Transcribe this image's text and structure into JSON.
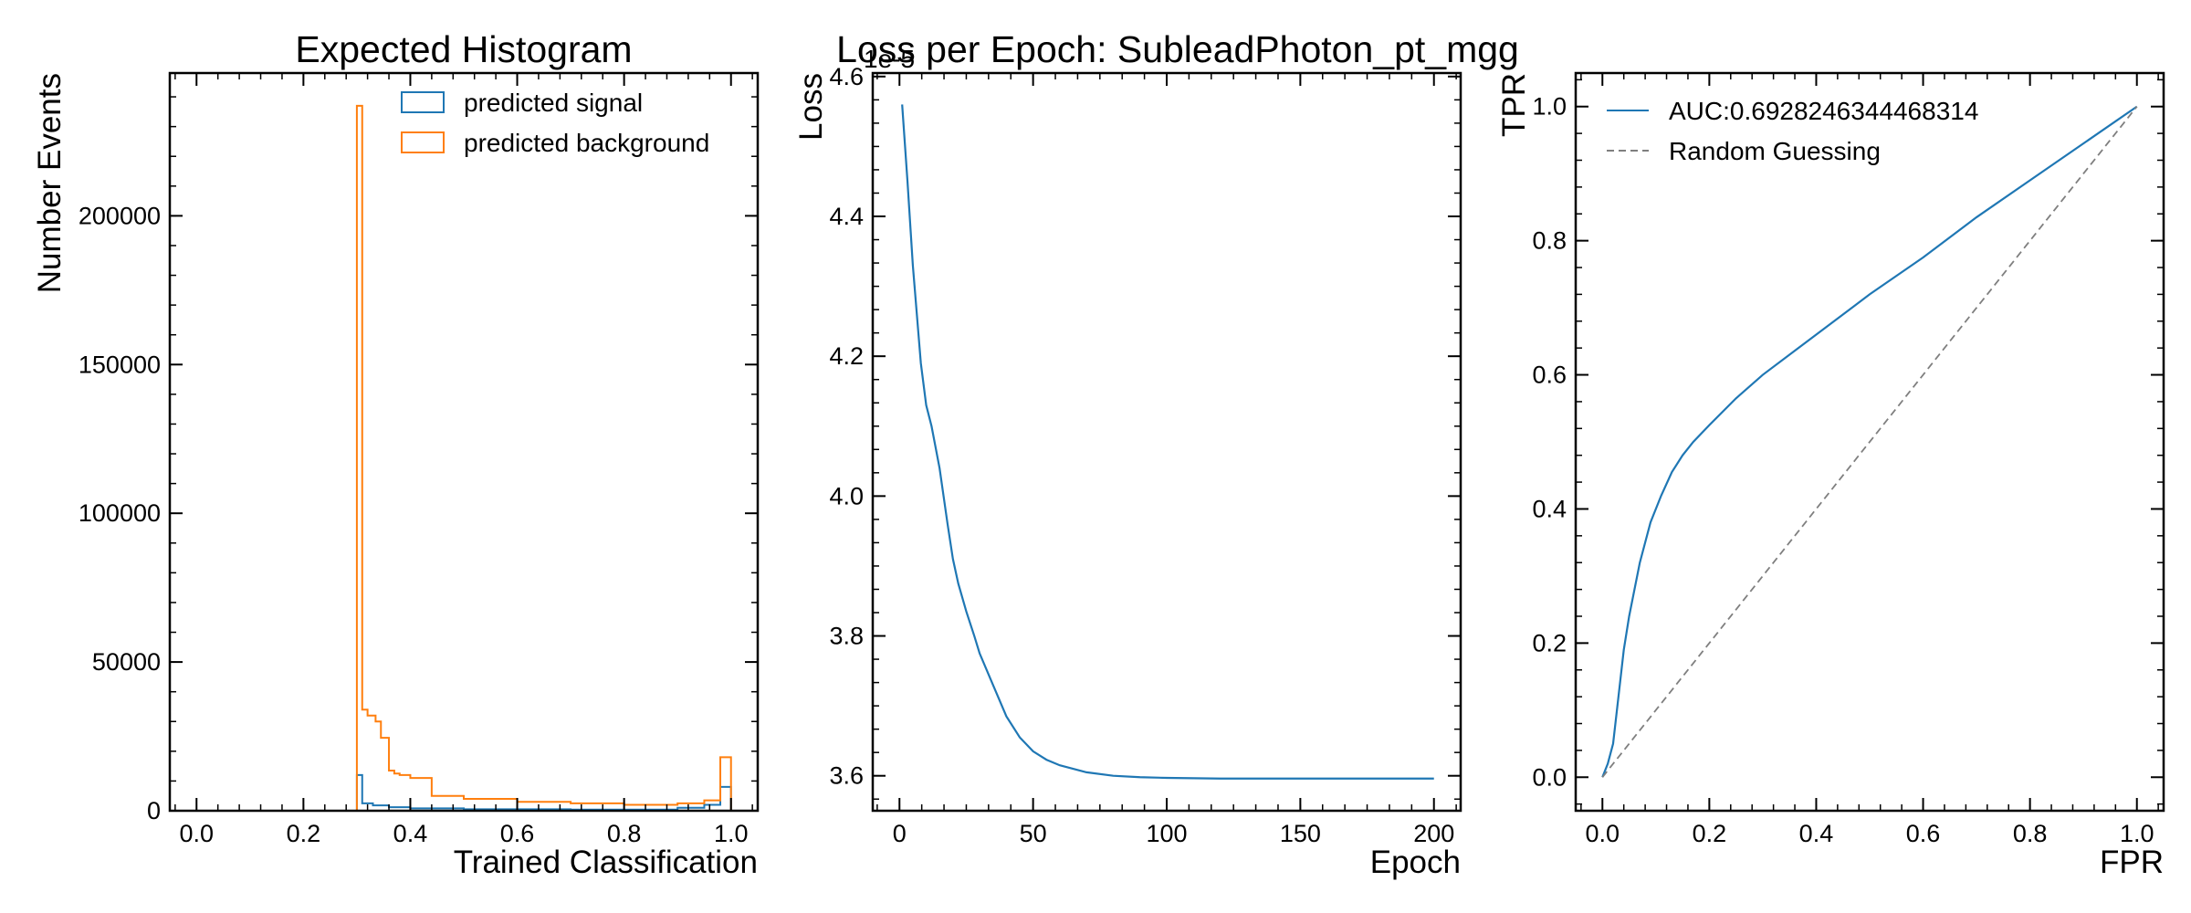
{
  "chart_data": [
    {
      "type": "histogram",
      "title": "Expected Histogram",
      "xlabel": "Trained Classification",
      "ylabel": "Number Events",
      "xlim": [
        -0.05,
        1.05
      ],
      "ylim": [
        0,
        248000
      ],
      "xticks": [
        "0.0",
        "0.2",
        "0.4",
        "0.6",
        "0.8",
        "1.0"
      ],
      "yticks": [
        "0",
        "50000",
        "100000",
        "150000",
        "200000"
      ],
      "legend_position": "top-right",
      "series": [
        {
          "name": "predicted signal",
          "color": "#1f77b4",
          "bins": [
            {
              "x0": 0.3,
              "x1": 0.31,
              "value": 12000
            },
            {
              "x0": 0.31,
              "x1": 0.33,
              "value": 2500
            },
            {
              "x0": 0.33,
              "x1": 0.36,
              "value": 1800
            },
            {
              "x0": 0.36,
              "x1": 0.4,
              "value": 1200
            },
            {
              "x0": 0.4,
              "x1": 0.5,
              "value": 800
            },
            {
              "x0": 0.5,
              "x1": 0.7,
              "value": 500
            },
            {
              "x0": 0.7,
              "x1": 0.9,
              "value": 400
            },
            {
              "x0": 0.9,
              "x1": 0.95,
              "value": 1000
            },
            {
              "x0": 0.95,
              "x1": 0.98,
              "value": 2000
            },
            {
              "x0": 0.98,
              "x1": 1.0,
              "value": 8000
            }
          ]
        },
        {
          "name": "predicted background",
          "color": "#ff7f0e",
          "bins": [
            {
              "x0": 0.3,
              "x1": 0.31,
              "value": 237000
            },
            {
              "x0": 0.31,
              "x1": 0.32,
              "value": 34000
            },
            {
              "x0": 0.32,
              "x1": 0.335,
              "value": 32000
            },
            {
              "x0": 0.335,
              "x1": 0.345,
              "value": 30000
            },
            {
              "x0": 0.345,
              "x1": 0.36,
              "value": 24500
            },
            {
              "x0": 0.36,
              "x1": 0.37,
              "value": 13500
            },
            {
              "x0": 0.37,
              "x1": 0.38,
              "value": 12500
            },
            {
              "x0": 0.38,
              "x1": 0.4,
              "value": 12000
            },
            {
              "x0": 0.4,
              "x1": 0.44,
              "value": 11000
            },
            {
              "x0": 0.44,
              "x1": 0.5,
              "value": 5000
            },
            {
              "x0": 0.5,
              "x1": 0.6,
              "value": 4000
            },
            {
              "x0": 0.6,
              "x1": 0.7,
              "value": 3000
            },
            {
              "x0": 0.7,
              "x1": 0.8,
              "value": 2500
            },
            {
              "x0": 0.8,
              "x1": 0.9,
              "value": 2000
            },
            {
              "x0": 0.9,
              "x1": 0.95,
              "value": 2500
            },
            {
              "x0": 0.95,
              "x1": 0.98,
              "value": 3500
            },
            {
              "x0": 0.98,
              "x1": 1.0,
              "value": 18000
            }
          ]
        }
      ]
    },
    {
      "type": "line",
      "title": "Loss per Epoch: SubleadPhoton_pt_mgg",
      "xlabel": "Epoch",
      "ylabel": "Loss",
      "scale_label": "1e-5",
      "xlim": [
        -10,
        210
      ],
      "ylim": [
        3.55,
        4.605
      ],
      "xticks": [
        "0",
        "50",
        "100",
        "150",
        "200"
      ],
      "yticks": [
        "3.6",
        "3.8",
        "4.0",
        "4.2",
        "4.4",
        "4.6"
      ],
      "series": [
        {
          "name": "",
          "color": "#1f77b4",
          "x": [
            1,
            3,
            5,
            8,
            10,
            12,
            15,
            18,
            20,
            22,
            25,
            28,
            30,
            35,
            40,
            45,
            50,
            55,
            60,
            70,
            80,
            90,
            100,
            120,
            150,
            175,
            200
          ],
          "y": [
            4.56,
            4.45,
            4.33,
            4.19,
            4.13,
            4.1,
            4.04,
            3.96,
            3.91,
            3.875,
            3.835,
            3.8,
            3.775,
            3.73,
            3.685,
            3.655,
            3.635,
            3.623,
            3.615,
            3.605,
            3.6,
            3.598,
            3.597,
            3.596,
            3.596,
            3.596,
            3.596
          ]
        }
      ]
    },
    {
      "type": "line",
      "title": "",
      "xlabel": "FPR",
      "ylabel": "TPR",
      "xlim": [
        -0.05,
        1.05
      ],
      "ylim": [
        -0.05,
        1.05
      ],
      "xticks": [
        "0.0",
        "0.2",
        "0.4",
        "0.6",
        "0.8",
        "1.0"
      ],
      "yticks": [
        "0.0",
        "0.2",
        "0.4",
        "0.6",
        "0.8",
        "1.0"
      ],
      "legend_position": "top-left",
      "series": [
        {
          "name": "AUC:0.6928246344468314",
          "color": "#1f77b4",
          "style": "solid",
          "x": [
            0,
            0.01,
            0.02,
            0.03,
            0.04,
            0.05,
            0.07,
            0.09,
            0.11,
            0.13,
            0.15,
            0.17,
            0.2,
            0.25,
            0.3,
            0.4,
            0.5,
            0.6,
            0.7,
            0.8,
            0.9,
            1.0
          ],
          "y": [
            0,
            0.02,
            0.05,
            0.12,
            0.19,
            0.24,
            0.32,
            0.38,
            0.42,
            0.455,
            0.48,
            0.5,
            0.525,
            0.565,
            0.6,
            0.66,
            0.72,
            0.775,
            0.835,
            0.89,
            0.945,
            1.0
          ]
        },
        {
          "name": "Random Guessing",
          "color": "#7f7f7f",
          "style": "dashed",
          "x": [
            0,
            1
          ],
          "y": [
            0,
            1
          ]
        }
      ]
    }
  ]
}
